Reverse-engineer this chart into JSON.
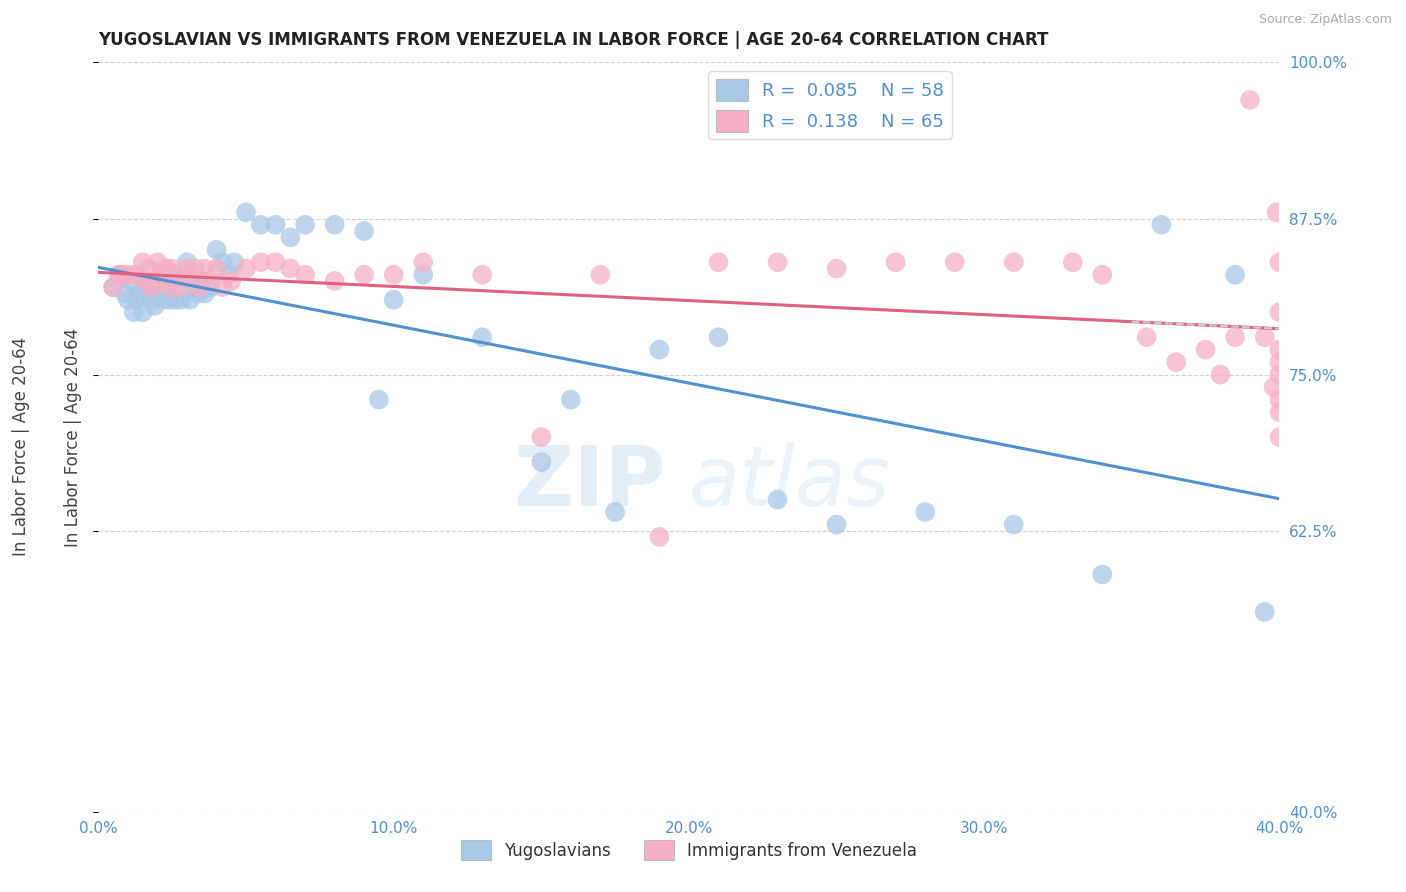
{
  "title": "YUGOSLAVIAN VS IMMIGRANTS FROM VENEZUELA IN LABOR FORCE | AGE 20-64 CORRELATION CHART",
  "source": "Source: ZipAtlas.com",
  "ylabel": "In Labor Force | Age 20-64",
  "xlim": [
    0.0,
    0.4
  ],
  "ylim": [
    0.4,
    1.0
  ],
  "yticks": [
    0.4,
    0.625,
    0.75,
    0.875,
    1.0
  ],
  "ytick_labels": [
    "40.0%",
    "62.5%",
    "75.0%",
    "87.5%",
    "100.0%"
  ],
  "xticks": [
    0.0,
    0.1,
    0.2,
    0.3,
    0.4
  ],
  "xtick_labels": [
    "0.0%",
    "10.0%",
    "20.0%",
    "30.0%",
    "40.0%"
  ],
  "blue_R": 0.085,
  "blue_N": 58,
  "pink_R": 0.138,
  "pink_N": 65,
  "blue_color": "#a8c8e8",
  "pink_color": "#f5b0c5",
  "blue_line_color": "#5090d0",
  "pink_line_color": "#e06080",
  "tick_label_color": "#5090d0",
  "legend_label_blue": "Yugoslavians",
  "legend_label_pink": "Immigrants from Venezuela",
  "watermark_zip": "ZIP",
  "watermark_atlas": "atlas",
  "blue_x": [
    0.005,
    0.007,
    0.009,
    0.01,
    0.011,
    0.012,
    0.013,
    0.014,
    0.015,
    0.016,
    0.017,
    0.018,
    0.019,
    0.02,
    0.021,
    0.022,
    0.023,
    0.024,
    0.025,
    0.026,
    0.027,
    0.028,
    0.03,
    0.031,
    0.032,
    0.033,
    0.034,
    0.035,
    0.036,
    0.038,
    0.04,
    0.042,
    0.044,
    0.046,
    0.05,
    0.055,
    0.06,
    0.065,
    0.07,
    0.08,
    0.09,
    0.095,
    0.1,
    0.11,
    0.13,
    0.15,
    0.16,
    0.175,
    0.19,
    0.21,
    0.23,
    0.25,
    0.28,
    0.31,
    0.34,
    0.36,
    0.385,
    0.395
  ],
  "blue_y": [
    0.82,
    0.83,
    0.815,
    0.81,
    0.825,
    0.8,
    0.81,
    0.815,
    0.8,
    0.82,
    0.815,
    0.81,
    0.805,
    0.82,
    0.825,
    0.81,
    0.815,
    0.81,
    0.83,
    0.81,
    0.82,
    0.81,
    0.84,
    0.81,
    0.825,
    0.82,
    0.815,
    0.825,
    0.815,
    0.82,
    0.85,
    0.84,
    0.83,
    0.84,
    0.88,
    0.87,
    0.87,
    0.86,
    0.87,
    0.87,
    0.865,
    0.73,
    0.81,
    0.83,
    0.78,
    0.68,
    0.73,
    0.64,
    0.77,
    0.78,
    0.65,
    0.63,
    0.64,
    0.63,
    0.59,
    0.87,
    0.83,
    0.56
  ],
  "pink_x": [
    0.005,
    0.007,
    0.009,
    0.011,
    0.013,
    0.015,
    0.016,
    0.017,
    0.018,
    0.019,
    0.02,
    0.021,
    0.022,
    0.023,
    0.024,
    0.025,
    0.026,
    0.028,
    0.03,
    0.031,
    0.033,
    0.034,
    0.036,
    0.038,
    0.04,
    0.042,
    0.045,
    0.05,
    0.055,
    0.06,
    0.065,
    0.07,
    0.08,
    0.09,
    0.1,
    0.11,
    0.13,
    0.15,
    0.17,
    0.19,
    0.21,
    0.23,
    0.25,
    0.27,
    0.29,
    0.31,
    0.33,
    0.34,
    0.355,
    0.365,
    0.375,
    0.38,
    0.385,
    0.39,
    0.395,
    0.398,
    0.399,
    0.4,
    0.4,
    0.4,
    0.4,
    0.4,
    0.4,
    0.4,
    0.4
  ],
  "pink_y": [
    0.82,
    0.83,
    0.83,
    0.83,
    0.83,
    0.84,
    0.825,
    0.835,
    0.82,
    0.825,
    0.84,
    0.83,
    0.825,
    0.835,
    0.82,
    0.835,
    0.83,
    0.82,
    0.835,
    0.83,
    0.835,
    0.82,
    0.835,
    0.825,
    0.835,
    0.82,
    0.825,
    0.835,
    0.84,
    0.84,
    0.835,
    0.83,
    0.825,
    0.83,
    0.83,
    0.84,
    0.83,
    0.7,
    0.83,
    0.62,
    0.84,
    0.84,
    0.835,
    0.84,
    0.84,
    0.84,
    0.84,
    0.83,
    0.78,
    0.76,
    0.77,
    0.75,
    0.78,
    0.97,
    0.78,
    0.74,
    0.88,
    0.84,
    0.8,
    0.76,
    0.72,
    0.7,
    0.75,
    0.73,
    0.77
  ]
}
